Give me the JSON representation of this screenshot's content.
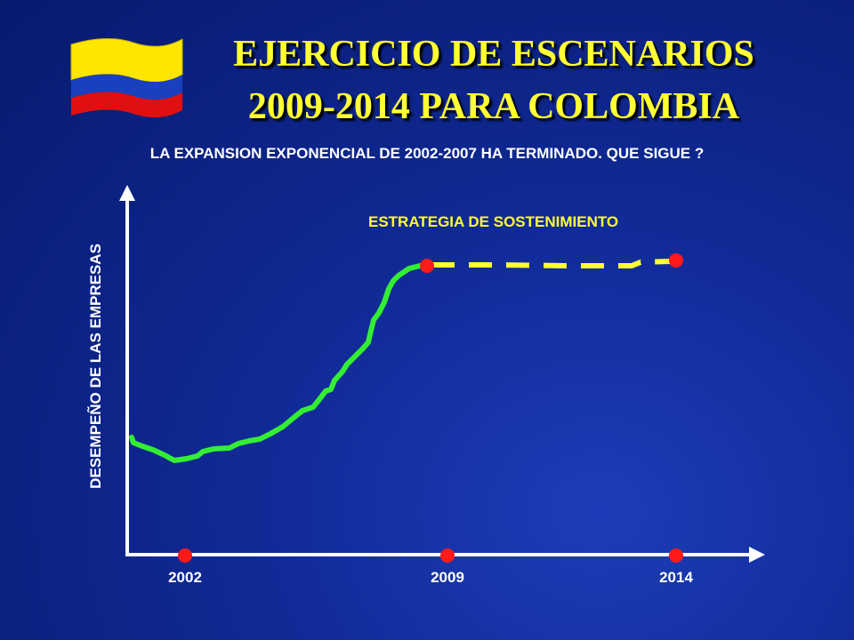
{
  "title_line1": "EJERCICIO DE ESCENARIOS",
  "title_line2": "2009-2014 PARA  COLOMBIA",
  "subtitle": "LA EXPANSION EXPONENCIAL DE 2002-2007 HA TERMINADO. QUE SIGUE ?",
  "strategy_label": "ESTRATEGIA DE SOSTENIMIENTO",
  "y_axis_label": "DESEMPEÑO DE LAS EMPRESAS",
  "years": [
    "2002",
    "2009",
    "2014"
  ],
  "flag": {
    "name": "colombia-flag-icon",
    "colors": [
      "#ffe600",
      "#1a3fbf",
      "#e01010"
    ]
  },
  "colors": {
    "title": "#ffff33",
    "actual_curve": "#33ee33",
    "projection": "#ffff33",
    "markers": "#ff1a1a",
    "axes": "#ffffff"
  }
}
